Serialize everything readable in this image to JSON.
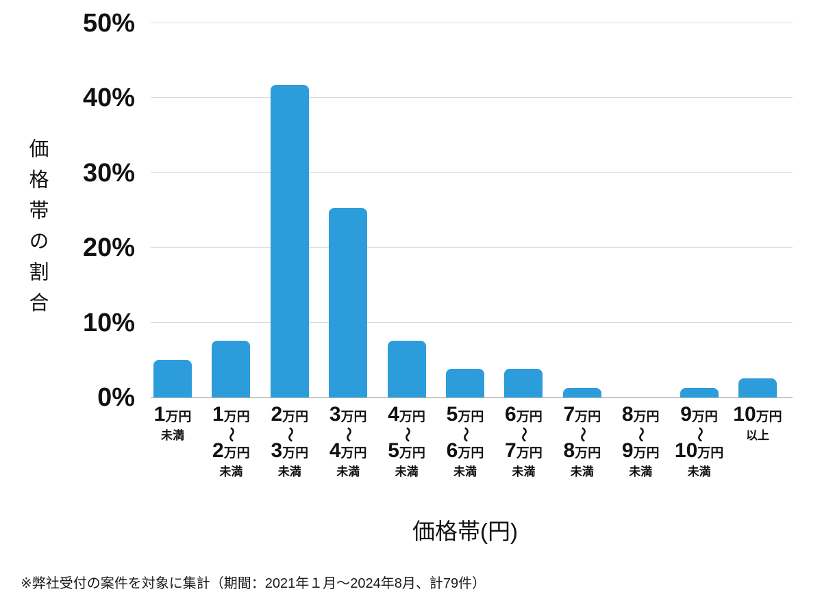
{
  "colors": {
    "bar": "#2D9CDB",
    "gridline": "#D9D9D9",
    "baseline": "#C6C6C6",
    "text": "#111111",
    "background": "#FFFFFF"
  },
  "y_axis": {
    "title": "価格帯の割合",
    "ticks": [
      "0%",
      "10%",
      "20%",
      "30%",
      "40%",
      "50%"
    ]
  },
  "x_axis": {
    "title": "価格帯(円)",
    "categories_display": [
      {
        "from": "1",
        "from_unit": "万円",
        "tilde": "",
        "to": "",
        "to_unit": "",
        "qualifier": "未満"
      },
      {
        "from": "1",
        "from_unit": "万円",
        "tilde": "〜",
        "to": "2",
        "to_unit": "万円",
        "qualifier": "未満"
      },
      {
        "from": "2",
        "from_unit": "万円",
        "tilde": "〜",
        "to": "3",
        "to_unit": "万円",
        "qualifier": "未満"
      },
      {
        "from": "3",
        "from_unit": "万円",
        "tilde": "〜",
        "to": "4",
        "to_unit": "万円",
        "qualifier": "未満"
      },
      {
        "from": "4",
        "from_unit": "万円",
        "tilde": "〜",
        "to": "5",
        "to_unit": "万円",
        "qualifier": "未満"
      },
      {
        "from": "5",
        "from_unit": "万円",
        "tilde": "〜",
        "to": "6",
        "to_unit": "万円",
        "qualifier": "未満"
      },
      {
        "from": "6",
        "from_unit": "万円",
        "tilde": "〜",
        "to": "7",
        "to_unit": "万円",
        "qualifier": "未満"
      },
      {
        "from": "7",
        "from_unit": "万円",
        "tilde": "〜",
        "to": "8",
        "to_unit": "万円",
        "qualifier": "未満"
      },
      {
        "from": "8",
        "from_unit": "万円",
        "tilde": "〜",
        "to": "9",
        "to_unit": "万円",
        "qualifier": "未満"
      },
      {
        "from": "9",
        "from_unit": "万円",
        "tilde": "〜",
        "to": "10",
        "to_unit": "万円",
        "qualifier": "未満"
      },
      {
        "from": "10",
        "from_unit": "万円",
        "tilde": "",
        "to": "",
        "to_unit": "",
        "qualifier": "以上"
      }
    ]
  },
  "footnote": "※弊社受付の案件を対象に集計（期間：2021年１月～2024年8月、計79件）",
  "chart_data": {
    "type": "bar",
    "title": "",
    "xlabel": "価格帯(円)",
    "ylabel": "価格帯の割合",
    "ylim": [
      0,
      50
    ],
    "ytick_labels": [
      "0%",
      "10%",
      "20%",
      "30%",
      "40%",
      "50%"
    ],
    "grid": true,
    "legend": false,
    "bar_color": "#2D9CDB",
    "categories": [
      "1万円未満",
      "1万円〜2万円未満",
      "2万円〜3万円未満",
      "3万円〜4万円未満",
      "4万円〜5万円未満",
      "5万円〜6万円未満",
      "6万円〜7万円未満",
      "7万円〜8万円未満",
      "8万円〜9万円未満",
      "9万円〜10万円未満",
      "10万円以上"
    ],
    "values": [
      5.06,
      7.59,
      41.77,
      25.32,
      7.59,
      3.8,
      3.8,
      1.27,
      0,
      1.27,
      2.53
    ]
  }
}
